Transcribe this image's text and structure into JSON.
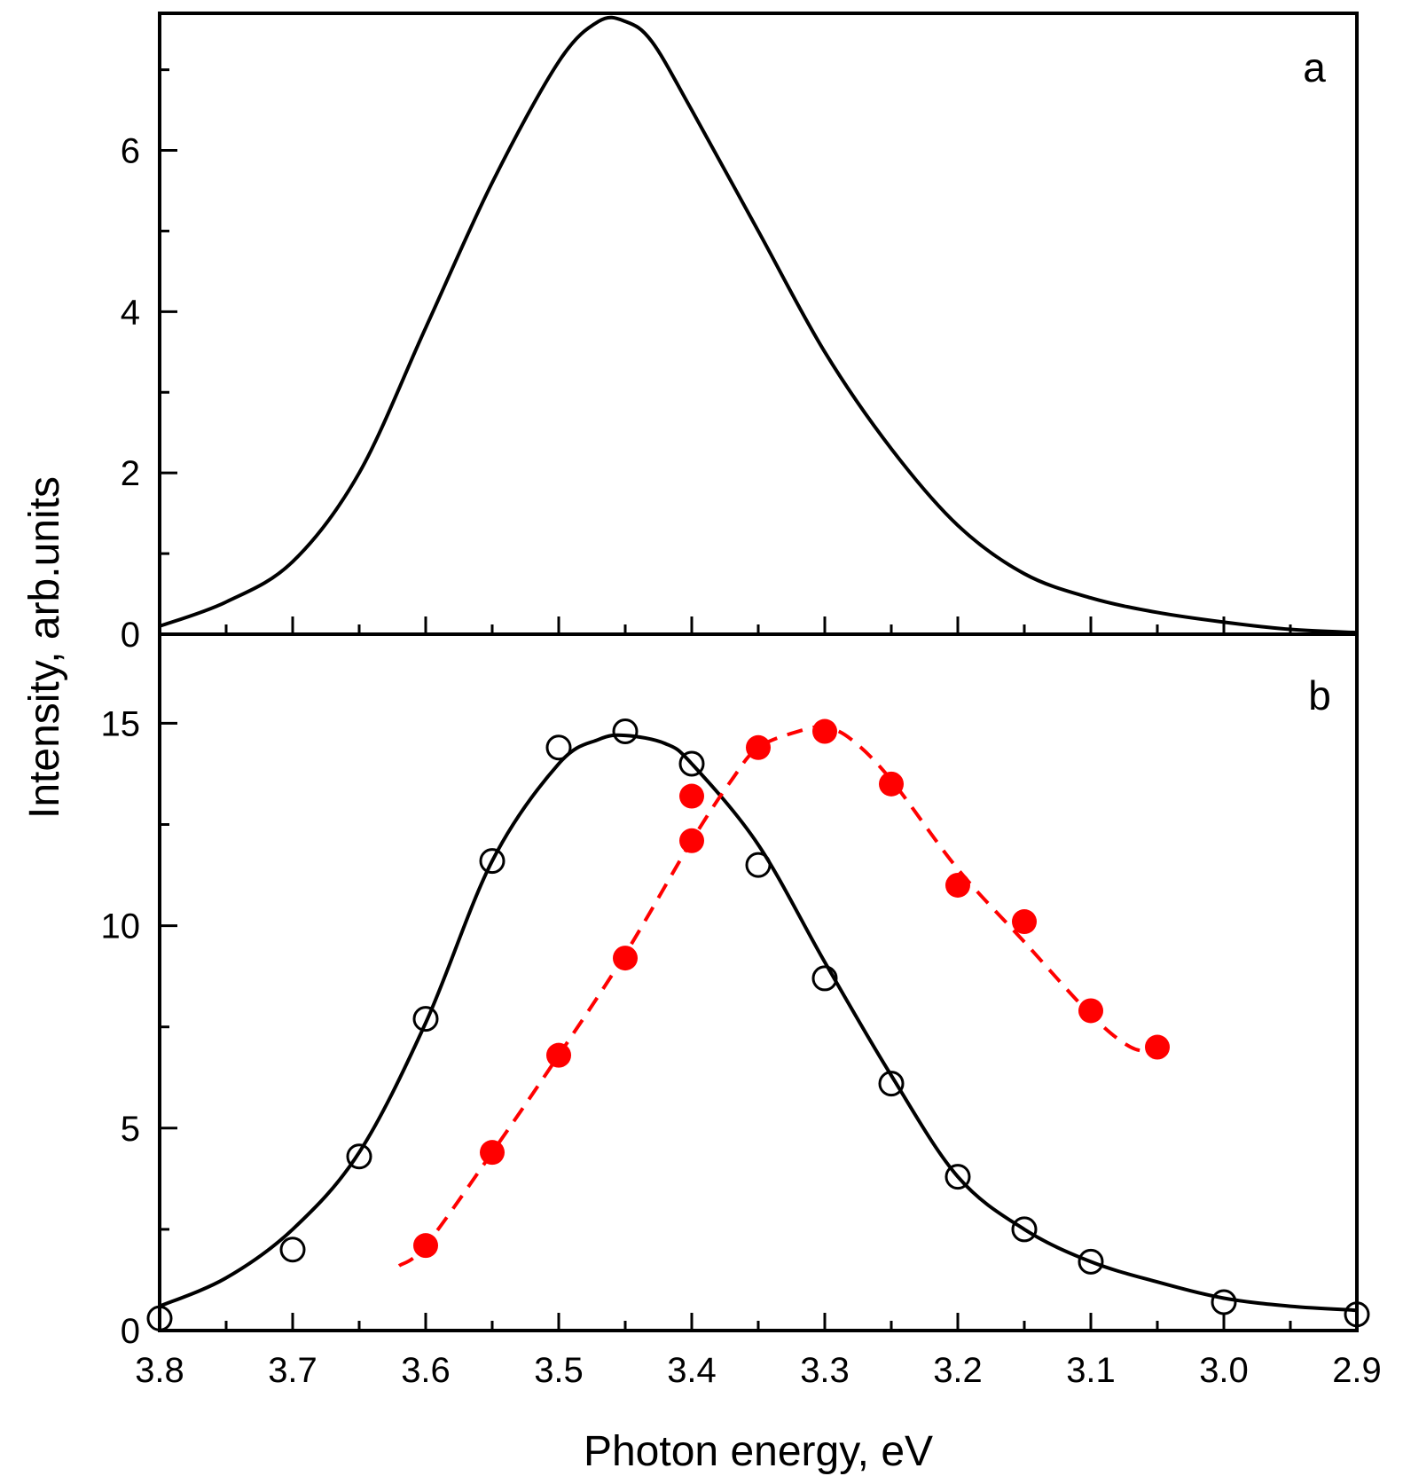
{
  "chart_data": [
    {
      "panel": "a",
      "type": "line",
      "panel_label": "a",
      "xlim": [
        3.8,
        2.9
      ],
      "ylim": [
        0,
        7.7
      ],
      "x_ticks": [
        "3.8",
        "3.7",
        "3.6",
        "3.5",
        "3.4",
        "3.3",
        "3.2",
        "3.1",
        "3.0",
        "2.9"
      ],
      "x_tick_values": [
        3.8,
        3.7,
        3.6,
        3.5,
        3.4,
        3.3,
        3.2,
        3.1,
        3.0,
        2.9
      ],
      "y_ticks": [
        "0",
        "2",
        "4",
        "6"
      ],
      "y_tick_values": [
        0,
        2,
        4,
        6
      ],
      "series": [
        {
          "name": "spectrum a",
          "style": "solid",
          "color": "#000000",
          "x": [
            3.8,
            3.75,
            3.7,
            3.65,
            3.6,
            3.55,
            3.5,
            3.47,
            3.45,
            3.43,
            3.4,
            3.35,
            3.3,
            3.25,
            3.2,
            3.15,
            3.1,
            3.05,
            3.0,
            2.95,
            2.9
          ],
          "y": [
            0.1,
            0.4,
            0.9,
            2.0,
            3.8,
            5.6,
            7.1,
            7.6,
            7.6,
            7.35,
            6.5,
            5.0,
            3.5,
            2.3,
            1.35,
            0.75,
            0.45,
            0.27,
            0.15,
            0.06,
            0.02
          ]
        }
      ]
    },
    {
      "panel": "b",
      "type": "scatter",
      "panel_label": "b",
      "xlim": [
        3.8,
        2.9
      ],
      "ylim": [
        0,
        17.2
      ],
      "x_ticks": [
        "3.8",
        "3.7",
        "3.6",
        "3.5",
        "3.4",
        "3.3",
        "3.2",
        "3.1",
        "3.0",
        "2.9"
      ],
      "x_tick_values": [
        3.8,
        3.7,
        3.6,
        3.5,
        3.4,
        3.3,
        3.2,
        3.1,
        3.0,
        2.9
      ],
      "y_ticks": [
        "0",
        "5",
        "10",
        "15"
      ],
      "y_tick_values": [
        0,
        5,
        10,
        15
      ],
      "series": [
        {
          "name": "open circles",
          "marker": "open-circle",
          "color": "#000000",
          "x": [
            3.8,
            3.7,
            3.65,
            3.6,
            3.55,
            3.5,
            3.45,
            3.4,
            3.35,
            3.3,
            3.25,
            3.2,
            3.15,
            3.1,
            3.0,
            2.9
          ],
          "y": [
            0.3,
            2.0,
            4.3,
            7.7,
            11.6,
            14.4,
            14.8,
            14.0,
            11.5,
            8.7,
            6.1,
            3.8,
            2.5,
            1.7,
            0.7,
            0.4
          ]
        },
        {
          "name": "fit of open circles",
          "style": "solid",
          "color": "#000000",
          "x": [
            3.8,
            3.75,
            3.7,
            3.65,
            3.6,
            3.55,
            3.5,
            3.47,
            3.45,
            3.42,
            3.4,
            3.35,
            3.3,
            3.25,
            3.2,
            3.15,
            3.1,
            3.05,
            3.0,
            2.95,
            2.9
          ],
          "y": [
            0.6,
            1.3,
            2.5,
            4.4,
            7.6,
            11.6,
            14.0,
            14.6,
            14.7,
            14.5,
            14.0,
            12.0,
            9.1,
            6.3,
            3.8,
            2.5,
            1.7,
            1.2,
            0.8,
            0.6,
            0.5
          ]
        },
        {
          "name": "filled circles",
          "marker": "filled-circle",
          "color": "#ff0000",
          "x": [
            3.6,
            3.55,
            3.5,
            3.45,
            3.4,
            3.4,
            3.35,
            3.3,
            3.25,
            3.2,
            3.15,
            3.1,
            3.05
          ],
          "y": [
            2.1,
            4.4,
            6.8,
            9.2,
            12.1,
            13.2,
            14.4,
            14.8,
            13.5,
            11.0,
            10.1,
            7.9,
            7.0
          ]
        },
        {
          "name": "fit of filled circles",
          "style": "dashed",
          "color": "#ff0000",
          "x": [
            3.62,
            3.6,
            3.55,
            3.5,
            3.45,
            3.4,
            3.37,
            3.35,
            3.32,
            3.3,
            3.28,
            3.25,
            3.2,
            3.15,
            3.1,
            3.07,
            3.05
          ],
          "y": [
            1.6,
            2.1,
            4.4,
            6.8,
            9.3,
            12.1,
            13.6,
            14.4,
            14.8,
            14.9,
            14.6,
            13.6,
            11.4,
            9.6,
            7.8,
            7.0,
            6.9
          ]
        }
      ]
    }
  ],
  "axes": {
    "xlabel": "Photon energy, eV",
    "ylabel": "Intensity, arb.units"
  }
}
